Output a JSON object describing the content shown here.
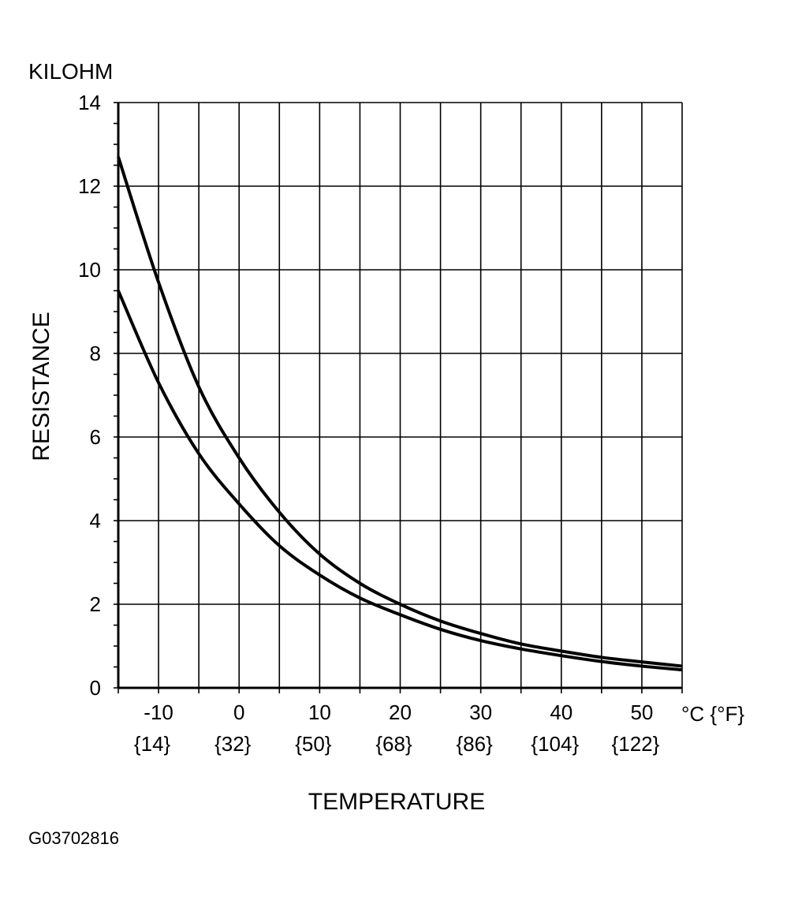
{
  "chart_data": {
    "type": "line",
    "ylabel": "RESISTANCE",
    "yunit": "KILOHM",
    "xlabel": "TEMPERATURE",
    "xunit": "°C {°F}",
    "xlim": [
      -15,
      55
    ],
    "ylim": [
      0,
      14
    ],
    "grid": true,
    "y_ticks": [
      "0",
      "2",
      "4",
      "6",
      "8",
      "10",
      "12",
      "14"
    ],
    "x_ticks": [
      {
        "c": "-10",
        "f": "{14}"
      },
      {
        "c": "0",
        "f": "{32}"
      },
      {
        "c": "10",
        "f": "{50}"
      },
      {
        "c": "20",
        "f": "{68}"
      },
      {
        "c": "30",
        "f": "{86}"
      },
      {
        "c": "40",
        "f": "{104}"
      },
      {
        "c": "50",
        "f": "{122}"
      }
    ],
    "series": [
      {
        "x": [
          -15,
          -10,
          -5,
          0,
          5,
          10,
          15,
          20,
          25,
          30,
          35,
          40,
          45,
          50,
          55
        ],
        "y": [
          12.7,
          9.7,
          7.2,
          5.5,
          4.2,
          3.2,
          2.5,
          2.0,
          1.6,
          1.3,
          1.05,
          0.88,
          0.73,
          0.62,
          0.52
        ]
      },
      {
        "x": [
          -15,
          -10,
          -5,
          0,
          5,
          10,
          15,
          20,
          25,
          30,
          35,
          40,
          45,
          50,
          55
        ],
        "y": [
          9.5,
          7.3,
          5.6,
          4.4,
          3.4,
          2.7,
          2.15,
          1.75,
          1.4,
          1.13,
          0.93,
          0.77,
          0.63,
          0.52,
          0.43
        ]
      }
    ]
  },
  "figure_id": "G03702816"
}
